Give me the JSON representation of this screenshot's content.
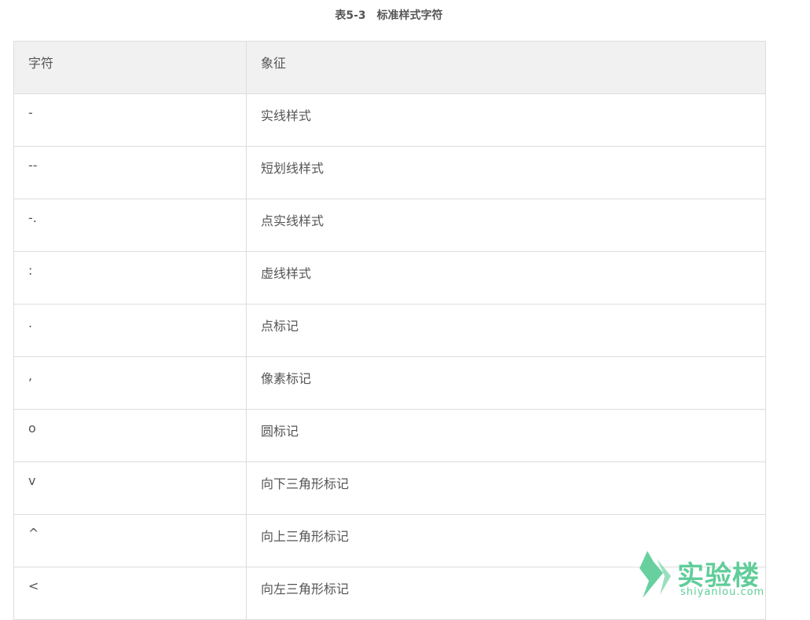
{
  "caption": "表5-3　标准样式字符",
  "table": {
    "headers": [
      "字符",
      "象征"
    ],
    "rows": [
      [
        "-",
        "实线样式"
      ],
      [
        "--",
        "短划线样式"
      ],
      [
        "-.",
        "点实线样式"
      ],
      [
        ":",
        "虚线样式"
      ],
      [
        ".",
        "点标记"
      ],
      [
        ",",
        "像素标记"
      ],
      [
        "o",
        "圆标记"
      ],
      [
        "v",
        "向下三角形标记"
      ],
      [
        "^",
        "向上三角形标记"
      ],
      [
        "<",
        "向左三角形标记"
      ]
    ]
  },
  "watermark": {
    "name": "实验楼",
    "url": "shiyanlou.com",
    "color": "#60cd9a"
  }
}
